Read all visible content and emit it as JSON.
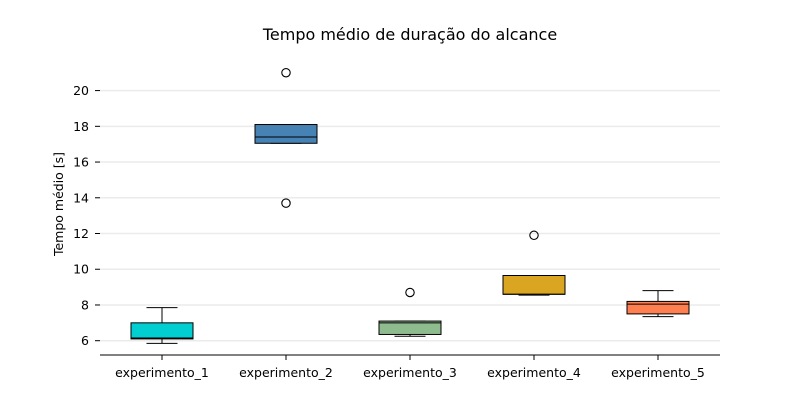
{
  "chart_data": {
    "type": "boxplot",
    "title": "Tempo médio de duração do alcance",
    "xlabel": "",
    "ylabel": "Tempo médio [s]",
    "ylim": [
      5.2,
      21.6
    ],
    "yticks": [
      6,
      8,
      10,
      12,
      14,
      16,
      18,
      20
    ],
    "grid": "horizontal",
    "categories": [
      "experimento_1",
      "experimento_2",
      "experimento_3",
      "experimento_4",
      "experimento_5"
    ],
    "boxes": [
      {
        "whisker_low": 5.85,
        "q1": 6.1,
        "median": 6.15,
        "q3": 7.0,
        "whisker_high": 7.85,
        "outliers": [],
        "color": "#00ced1"
      },
      {
        "whisker_low": 17.05,
        "q1": 17.05,
        "median": 17.4,
        "q3": 18.1,
        "whisker_high": 18.1,
        "outliers": [
          21.0,
          13.7
        ],
        "color": "#4682b4"
      },
      {
        "whisker_low": 6.25,
        "q1": 6.35,
        "median": 7.0,
        "q3": 7.1,
        "whisker_high": 7.1,
        "outliers": [
          8.7
        ],
        "color": "#8fbc8f"
      },
      {
        "whisker_low": 8.55,
        "q1": 8.6,
        "median": 8.6,
        "q3": 9.65,
        "whisker_high": 9.65,
        "outliers": [
          11.9
        ],
        "color": "#daa520"
      },
      {
        "whisker_low": 7.35,
        "q1": 7.5,
        "median": 8.05,
        "q3": 8.2,
        "whisker_high": 8.8,
        "outliers": [],
        "color": "#ff7f50"
      }
    ]
  }
}
